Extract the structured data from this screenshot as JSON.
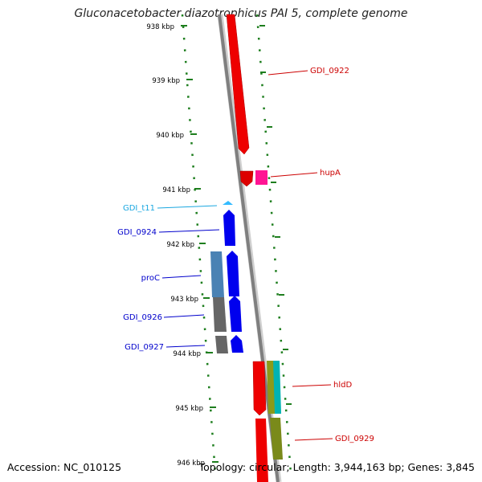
{
  "title": "Gluconacetobacter diazotrophicus PAI 5, complete genome",
  "accession": "Accession: NC_010125",
  "summary": "Topology: circular; Length: 3,944,163 bp; Genes: 3,845",
  "colors": {
    "backbone": "#7f7f7f",
    "ruler_ticks": "#1e7e1e",
    "trna": "#33bbff",
    "forward_strand": "#0000ee",
    "reverse_strand": "#ee0000",
    "label_forward": "#0000cc",
    "label_reverse": "#cc0000",
    "label_trna": "#1aa7e0"
  },
  "ruler": [
    {
      "label": "938 kbp"
    },
    {
      "label": "939 kbp"
    },
    {
      "label": "940 kbp"
    },
    {
      "label": "941 kbp"
    },
    {
      "label": "942 kbp"
    },
    {
      "label": "943 kbp"
    },
    {
      "label": "944 kbp"
    },
    {
      "label": "945 kbp"
    },
    {
      "label": "946 kbp"
    }
  ],
  "genes": [
    {
      "name": "GDI_0922",
      "strand": "reverse"
    },
    {
      "name": "hupA",
      "strand": "reverse"
    },
    {
      "name": "GDI_t11",
      "strand": "forward",
      "type": "tRNA"
    },
    {
      "name": "GDI_0924",
      "strand": "forward"
    },
    {
      "name": "proC",
      "strand": "forward"
    },
    {
      "name": "GDI_0926",
      "strand": "forward"
    },
    {
      "name": "GDI_0927",
      "strand": "forward"
    },
    {
      "name": "hldD",
      "strand": "reverse"
    },
    {
      "name": "GDI_0929",
      "strand": "reverse"
    }
  ]
}
